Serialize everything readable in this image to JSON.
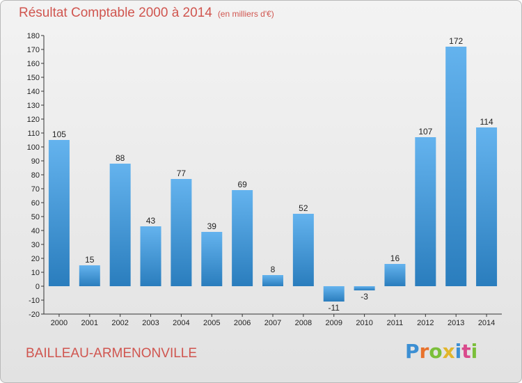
{
  "header": {
    "title": "Résultat Comptable 2000 à 2014",
    "unit": "(en milliers d'€)"
  },
  "footer": {
    "commune": "BAILLEAU-ARMENONVILLE",
    "logo": [
      "P",
      "r",
      "o",
      "x",
      "i",
      "t",
      "i"
    ],
    "logo_colors": [
      "#3c8fd3",
      "#e8722c",
      "#7bbf3a",
      "#e2b52b",
      "#3c8fd3",
      "#d94a8c",
      "#7bbf3a"
    ]
  },
  "colors": {
    "bar_light": "#64b3ee",
    "bar_dark": "#2a7dbd",
    "title": "#d0554f"
  },
  "chart_data": {
    "type": "bar",
    "title": "Résultat Comptable 2000 à 2014",
    "ylabel": "(en milliers d'€)",
    "categories": [
      "2000",
      "2001",
      "2002",
      "2003",
      "2004",
      "2005",
      "2006",
      "2007",
      "2008",
      "2009",
      "2010",
      "2011",
      "2012",
      "2013",
      "2014"
    ],
    "values": [
      105,
      15,
      88,
      43,
      77,
      39,
      69,
      8,
      52,
      -11,
      -3,
      16,
      107,
      172,
      114
    ],
    "value_labels": [
      "105",
      "15",
      "88",
      "43",
      "77",
      "39",
      "69",
      "8",
      "52",
      "-11",
      "-3",
      "16",
      "107",
      "172",
      "114"
    ],
    "ylim": [
      -20,
      180
    ],
    "yticks": [
      -20,
      -10,
      0,
      10,
      20,
      30,
      40,
      50,
      60,
      70,
      80,
      90,
      100,
      110,
      120,
      130,
      140,
      150,
      160,
      170,
      180
    ]
  }
}
